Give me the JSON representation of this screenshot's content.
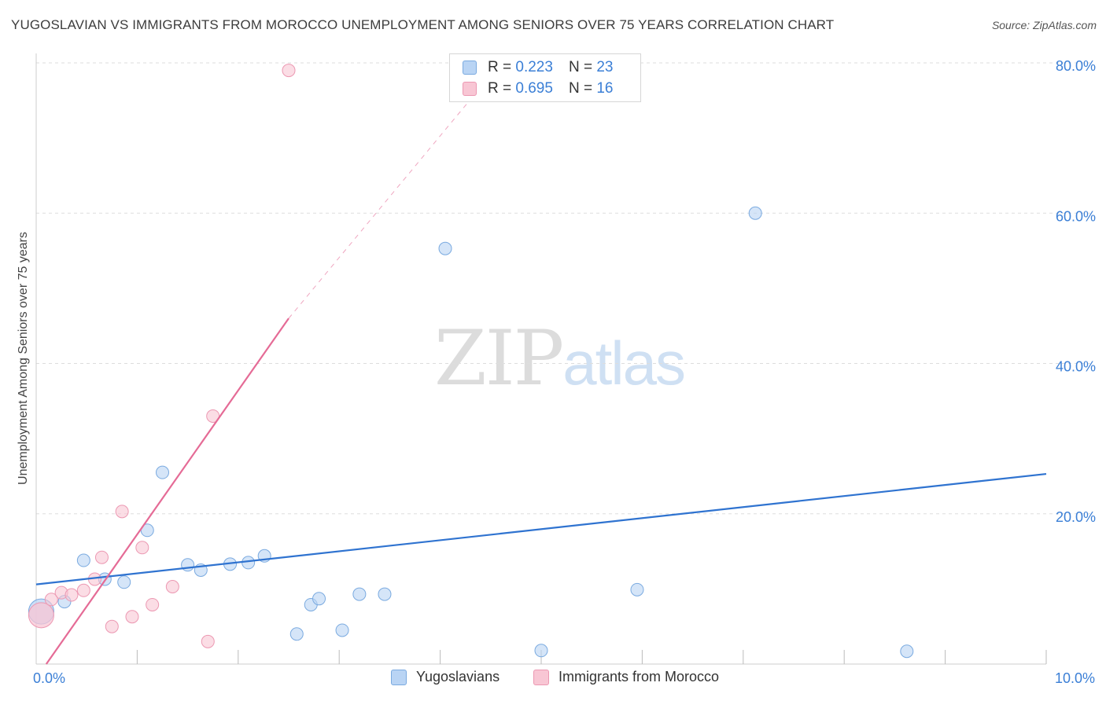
{
  "header": {
    "title": "YUGOSLAVIAN VS IMMIGRANTS FROM MOROCCO UNEMPLOYMENT AMONG SENIORS OVER 75 YEARS CORRELATION CHART",
    "source": "Source: ZipAtlas.com"
  },
  "watermark": {
    "zip": "ZIP",
    "atlas": "atlas"
  },
  "legend": {
    "rows": [
      {
        "r_label": "R =",
        "r_value": "0.223",
        "n_label": "N =",
        "n_value": "23"
      },
      {
        "r_label": "R =",
        "r_value": "0.695",
        "n_label": "N =",
        "n_value": "16"
      }
    ]
  },
  "bottom_legend": {
    "items": [
      "Yugoslavians",
      "Immigrants from Morocco"
    ]
  },
  "colors": {
    "blue_fill": "#b9d4f4",
    "blue_stroke": "#7aaae0",
    "blue_line": "#2f73d0",
    "pink_fill": "#f8c6d4",
    "pink_stroke": "#ec98b2",
    "pink_line": "#e56b96",
    "tick_label": "#3b7fd6",
    "grid": "#dddddd"
  },
  "chart_data": {
    "type": "scatter",
    "title": "YUGOSLAVIAN VS IMMIGRANTS FROM MOROCCO UNEMPLOYMENT AMONG SENIORS OVER 75 YEARS CORRELATION CHART",
    "xlabel": "",
    "ylabel": "Unemployment Among Seniors over 75 years",
    "xlim": [
      0,
      10
    ],
    "ylim": [
      0,
      80
    ],
    "x_ticks": [
      {
        "value": 0,
        "label": "0.0%"
      },
      {
        "value": 10,
        "label": "10.0%"
      }
    ],
    "y_ticks": [
      {
        "value": 20,
        "label": "20.0%"
      },
      {
        "value": 40,
        "label": "40.0%"
      },
      {
        "value": 60,
        "label": "60.0%"
      },
      {
        "value": 80,
        "label": "80.0%"
      }
    ],
    "x_minor_ticks": [
      1,
      2,
      3,
      4,
      5,
      6,
      7,
      8,
      9,
      10
    ],
    "series": [
      {
        "name": "Yugoslavians",
        "color": "blue",
        "points": [
          [
            0.05,
            7.0,
            "big"
          ],
          [
            0.28,
            8.3
          ],
          [
            0.47,
            13.8
          ],
          [
            0.68,
            11.3
          ],
          [
            0.87,
            10.9
          ],
          [
            1.25,
            25.5
          ],
          [
            1.1,
            17.8
          ],
          [
            1.5,
            13.2
          ],
          [
            1.63,
            12.5
          ],
          [
            1.92,
            13.3
          ],
          [
            2.1,
            13.5
          ],
          [
            2.26,
            14.4
          ],
          [
            2.58,
            4.0
          ],
          [
            2.72,
            7.9
          ],
          [
            2.8,
            8.7
          ],
          [
            3.03,
            4.5
          ],
          [
            3.2,
            9.3
          ],
          [
            3.45,
            9.3
          ],
          [
            4.05,
            55.3
          ],
          [
            5.0,
            1.8
          ],
          [
            5.95,
            9.9
          ],
          [
            7.12,
            60.0
          ],
          [
            8.62,
            1.7
          ]
        ],
        "trend": {
          "x0": 0,
          "y0": 10.6,
          "x1": 10,
          "y1": 25.3
        }
      },
      {
        "name": "Immigrants from Morocco",
        "color": "pink",
        "points": [
          [
            0.05,
            6.5,
            "big"
          ],
          [
            0.15,
            8.6
          ],
          [
            0.25,
            9.5
          ],
          [
            0.35,
            9.2
          ],
          [
            0.47,
            9.8
          ],
          [
            0.58,
            11.3
          ],
          [
            0.65,
            14.2
          ],
          [
            0.75,
            5.0
          ],
          [
            0.85,
            20.3
          ],
          [
            0.95,
            6.3
          ],
          [
            1.05,
            15.5
          ],
          [
            1.15,
            7.9
          ],
          [
            1.35,
            10.3
          ],
          [
            1.7,
            3.0
          ],
          [
            1.75,
            33.0
          ],
          [
            2.5,
            79.0
          ]
        ],
        "trend": {
          "x0": 0.1,
          "y0": 0,
          "x1": 2.5,
          "y1": 46.0
        },
        "trend_extension": {
          "x0": 2.5,
          "y0": 46.0,
          "x1": 4.6,
          "y1": 80.0
        }
      }
    ]
  }
}
